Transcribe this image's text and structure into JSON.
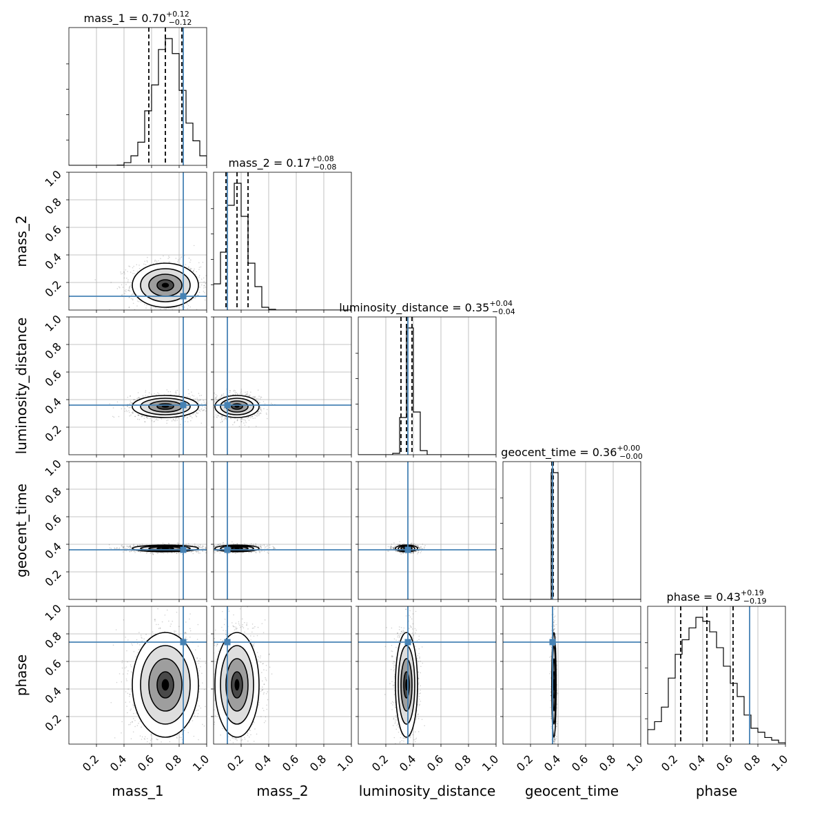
{
  "chart_data": {
    "type": "corner",
    "parameters": [
      "mass_1",
      "mass_2",
      "luminosity_distance",
      "geocent_time",
      "phase"
    ],
    "axis_range": [
      0,
      1
    ],
    "tick_values": [
      0.2,
      0.4,
      0.6,
      0.8,
      1.0
    ],
    "tick_labels": [
      "0.2",
      "0.4",
      "0.6",
      "0.8",
      "1.0"
    ],
    "grid": true,
    "truth_color": "#4682b4",
    "truths": [
      0.83,
      0.1,
      0.36,
      0.36,
      0.74
    ],
    "marginals": [
      {
        "name": "mass_1",
        "title_main": "mass_1 = 0.70",
        "title_plus": "+0.12",
        "title_minus": "−0.12",
        "median": 0.7,
        "lower": 0.58,
        "upper": 0.82,
        "hist_edges": [
          0,
          0.05,
          0.1,
          0.15,
          0.2,
          0.25,
          0.3,
          0.35,
          0.4,
          0.45,
          0.5,
          0.55,
          0.6,
          0.65,
          0.7,
          0.75,
          0.8,
          0.85,
          0.9,
          0.95,
          1.0
        ],
        "hist_counts": [
          0,
          0,
          0,
          0,
          0,
          0,
          0,
          0.002,
          0.02,
          0.07,
          0.17,
          0.4,
          0.59,
          0.85,
          0.93,
          0.82,
          0.55,
          0.31,
          0.18,
          0.07
        ]
      },
      {
        "name": "mass_2",
        "title_main": "mass_2 = 0.17",
        "title_plus": "+0.08",
        "title_minus": "−0.08",
        "median": 0.17,
        "lower": 0.09,
        "upper": 0.25,
        "hist_edges": [
          0,
          0.05,
          0.1,
          0.15,
          0.2,
          0.25,
          0.3,
          0.35,
          0.4,
          0.45,
          0.5,
          0.55,
          0.6,
          0.65,
          0.7,
          0.75,
          0.8,
          0.85,
          0.9,
          0.95,
          1.0
        ],
        "hist_counts": [
          0.19,
          0.42,
          0.76,
          0.92,
          0.68,
          0.34,
          0.17,
          0.02,
          0.005,
          0,
          0,
          0,
          0,
          0,
          0,
          0,
          0,
          0,
          0,
          0
        ]
      },
      {
        "name": "luminosity_distance",
        "title_main": "luminosity_distance = 0.35",
        "title_plus": "+0.04",
        "title_minus": "−0.04",
        "median": 0.35,
        "lower": 0.31,
        "upper": 0.39,
        "hist_edges": [
          0,
          0.05,
          0.1,
          0.15,
          0.2,
          0.25,
          0.3,
          0.35,
          0.4,
          0.45,
          0.5,
          0.55,
          0.6,
          0.65,
          0.7,
          0.75,
          0.8,
          0.85,
          0.9,
          0.95,
          1.0
        ],
        "hist_counts": [
          0,
          0,
          0,
          0,
          0,
          0.01,
          0.27,
          0.92,
          0.31,
          0.03,
          0,
          0,
          0,
          0,
          0,
          0,
          0,
          0,
          0,
          0
        ]
      },
      {
        "name": "geocent_time",
        "title_main": "geocent_time = 0.36",
        "title_plus": "+0.00",
        "title_minus": "−0.00",
        "median": 0.36,
        "lower": 0.355,
        "upper": 0.365,
        "hist_edges": [
          0,
          0.05,
          0.1,
          0.15,
          0.2,
          0.25,
          0.3,
          0.35,
          0.4,
          0.45,
          0.5,
          0.55,
          0.6,
          0.65,
          0.7,
          0.75,
          0.8,
          0.85,
          0.9,
          0.95,
          1.0
        ],
        "hist_counts": [
          0,
          0,
          0,
          0,
          0,
          0,
          0,
          0.93,
          0,
          0,
          0,
          0,
          0,
          0,
          0,
          0,
          0,
          0,
          0,
          0
        ]
      },
      {
        "name": "phase",
        "title_main": "phase = 0.43",
        "title_plus": "+0.19",
        "title_minus": "−0.19",
        "median": 0.43,
        "lower": 0.24,
        "upper": 0.62,
        "hist_edges": [
          0,
          0.05,
          0.1,
          0.15,
          0.2,
          0.25,
          0.3,
          0.35,
          0.4,
          0.45,
          0.5,
          0.55,
          0.6,
          0.65,
          0.7,
          0.75,
          0.8,
          0.85,
          0.9,
          0.95,
          1.0
        ],
        "hist_counts": [
          0.11,
          0.17,
          0.28,
          0.5,
          0.68,
          0.79,
          0.88,
          0.96,
          0.93,
          0.85,
          0.73,
          0.59,
          0.46,
          0.36,
          0.22,
          0.12,
          0.09,
          0.05,
          0.03,
          0.01
        ]
      }
    ],
    "pair_densities": [
      {
        "x": "mass_1",
        "y": "mass_2",
        "mean_x": 0.7,
        "mean_y": 0.18,
        "sd_x": 0.12,
        "sd_y": 0.08
      },
      {
        "x": "mass_1",
        "y": "luminosity_distance",
        "mean_x": 0.7,
        "mean_y": 0.35,
        "sd_x": 0.12,
        "sd_y": 0.04
      },
      {
        "x": "mass_2",
        "y": "luminosity_distance",
        "mean_x": 0.17,
        "mean_y": 0.35,
        "sd_x": 0.08,
        "sd_y": 0.04
      },
      {
        "x": "mass_1",
        "y": "geocent_time",
        "mean_x": 0.7,
        "mean_y": 0.37,
        "sd_x": 0.12,
        "sd_y": 0.012
      },
      {
        "x": "mass_2",
        "y": "geocent_time",
        "mean_x": 0.17,
        "mean_y": 0.37,
        "sd_x": 0.08,
        "sd_y": 0.012
      },
      {
        "x": "luminosity_distance",
        "y": "geocent_time",
        "mean_x": 0.35,
        "mean_y": 0.37,
        "sd_x": 0.04,
        "sd_y": 0.012
      },
      {
        "x": "mass_1",
        "y": "phase",
        "mean_x": 0.7,
        "mean_y": 0.43,
        "sd_x": 0.12,
        "sd_y": 0.19
      },
      {
        "x": "mass_2",
        "y": "phase",
        "mean_x": 0.17,
        "mean_y": 0.43,
        "sd_x": 0.08,
        "sd_y": 0.19
      },
      {
        "x": "luminosity_distance",
        "y": "phase",
        "mean_x": 0.35,
        "mean_y": 0.43,
        "sd_x": 0.04,
        "sd_y": 0.19
      },
      {
        "x": "geocent_time",
        "y": "phase",
        "mean_x": 0.37,
        "mean_y": 0.43,
        "sd_x": 0.008,
        "sd_y": 0.19
      }
    ]
  }
}
